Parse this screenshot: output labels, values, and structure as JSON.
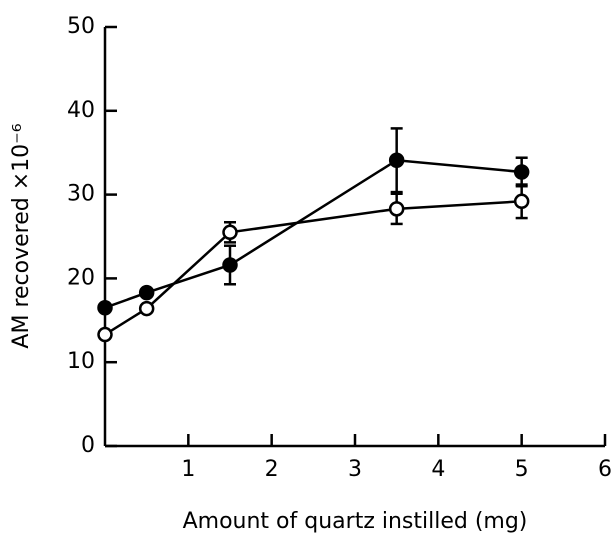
{
  "chart_data": {
    "type": "line",
    "xlabel": "Amount of quartz  instilled (mg)",
    "ylabel": "AM recovered ×10⁻⁶",
    "x": [
      0,
      0.5,
      1.5,
      3.5,
      5
    ],
    "series": [
      {
        "color": "#000000",
        "marker": "filled",
        "values": [
          16.5,
          18.3,
          21.6,
          34.1,
          32.7
        ],
        "errors": [
          null,
          null,
          2.3,
          3.8,
          1.7
        ]
      },
      {
        "color": "#000000",
        "marker": "open",
        "values": [
          13.3,
          16.4,
          25.5,
          28.3,
          29.2
        ],
        "errors": [
          null,
          null,
          1.2,
          1.8,
          2.0
        ]
      }
    ],
    "xlim": [
      0,
      6
    ],
    "xticks": [
      1,
      2,
      3,
      4,
      5,
      6
    ],
    "ylim": [
      0,
      50
    ],
    "yticks": [
      0,
      10,
      20,
      30,
      40,
      50
    ]
  }
}
